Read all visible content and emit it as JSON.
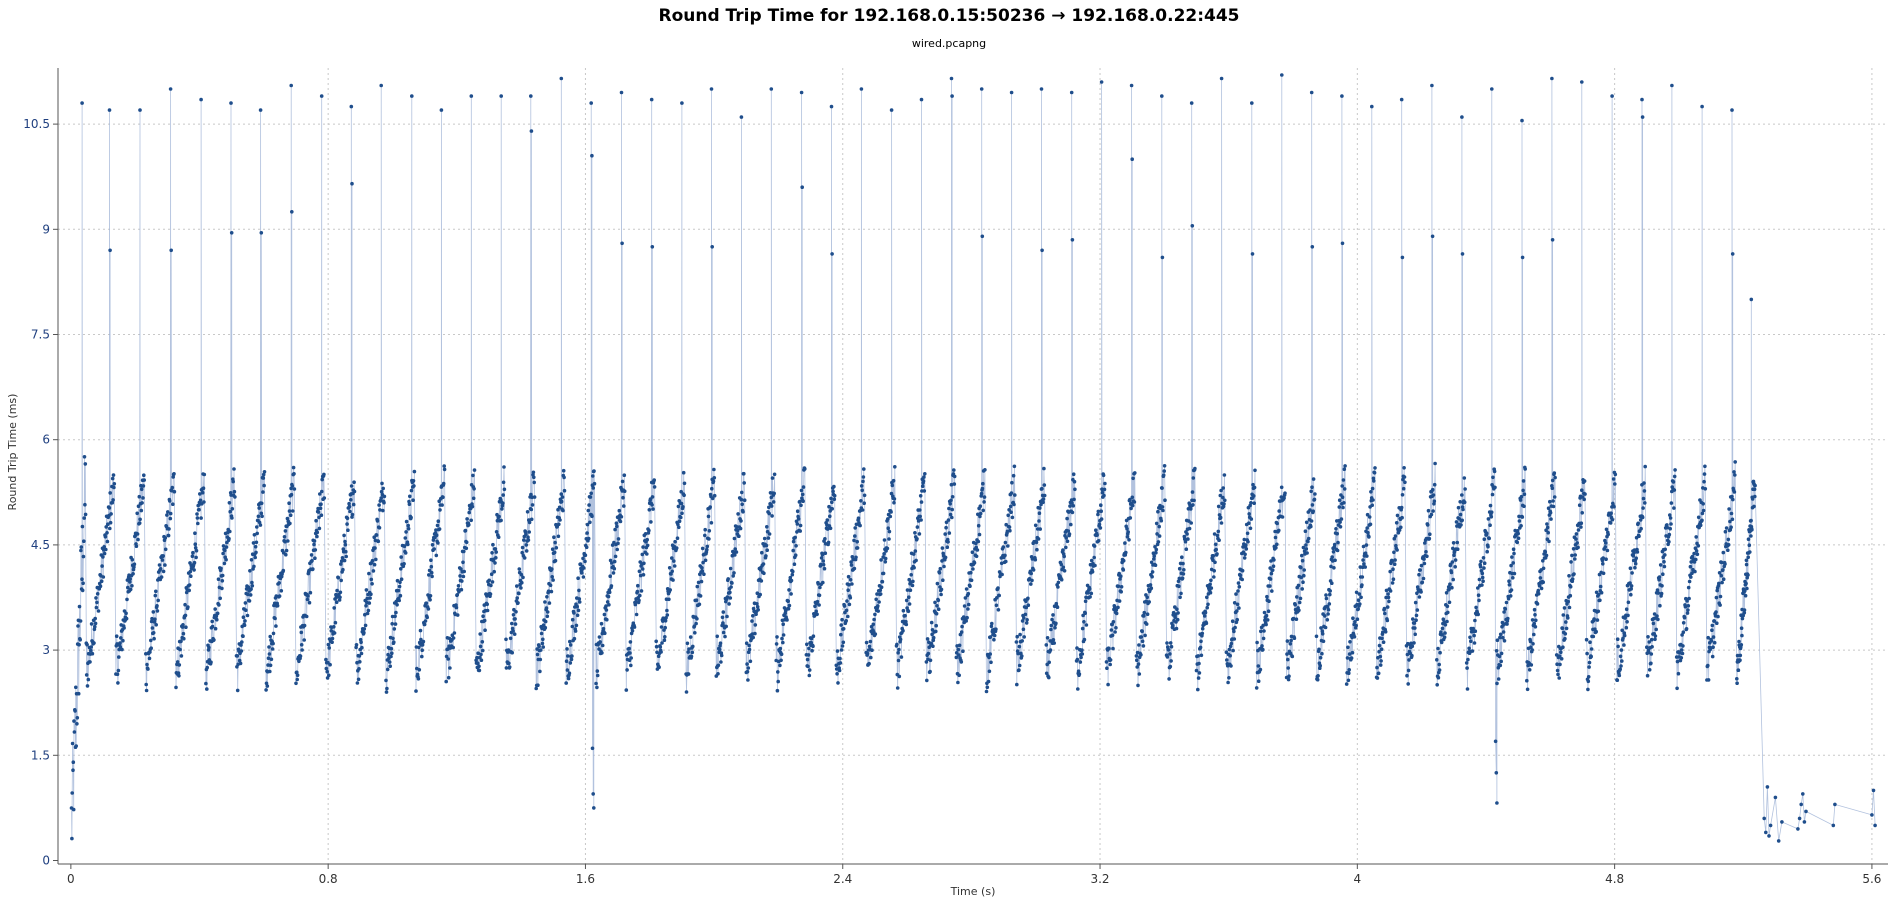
{
  "chart_data": {
    "type": "scatter",
    "title": "Round Trip Time for 192.168.0.15:50236 → 192.168.0.22:445",
    "subtitle": "wired.pcapng",
    "xlabel": "Time (s)",
    "ylabel": "Round Trip Time (ms)",
    "xlim": [
      -0.04,
      5.65
    ],
    "ylim": [
      -0.05,
      11.3
    ],
    "x_ticks": [
      "0",
      "0.8",
      "1.6",
      "2.4",
      "3.2",
      "4",
      "4.8",
      "5.6"
    ],
    "y_ticks": [
      "0",
      "1.5",
      "3",
      "4.5",
      "6",
      "7.5",
      "9",
      "10.5"
    ],
    "grid": true,
    "series": [
      {
        "color": "#1f4e8c",
        "connected": true,
        "pattern": "periodic sawtooth: RTT climbs from about 2.5 ms to about 5.5 ms over each ~0.095 s cycle, with isolated spikes near 10.5-11 ms at cycle boundaries; initial ramp from ~0.5 ms at t=0, dips to ~0.8 ms near t=1.62 s and t=4.43 s, low values (~0.3-1.0 ms) after t=5.25 s",
        "cycle_starts": [
          0.048,
          0.14,
          0.233,
          0.327,
          0.42,
          0.515,
          0.607,
          0.7,
          0.793,
          0.887,
          0.98,
          1.073,
          1.167,
          1.26,
          1.353,
          1.447,
          1.54,
          1.633,
          1.727,
          1.82,
          1.913,
          2.007,
          2.1,
          2.193,
          2.287,
          2.38,
          2.473,
          2.567,
          2.66,
          2.753,
          2.847,
          2.94,
          3.033,
          3.127,
          3.22,
          3.313,
          3.407,
          3.5,
          3.593,
          3.687,
          3.78,
          3.873,
          3.967,
          4.06,
          4.153,
          4.247,
          4.34,
          4.433,
          4.527,
          4.62,
          4.713,
          4.807,
          4.9,
          4.993,
          5.087,
          5.18
        ],
        "spikes": [
          {
            "x": 0.035,
            "y": 10.8
          },
          {
            "x": 0.12,
            "y": 10.7
          },
          {
            "x": 0.122,
            "y": 8.7
          },
          {
            "x": 0.215,
            "y": 10.7
          },
          {
            "x": 0.31,
            "y": 11.0
          },
          {
            "x": 0.312,
            "y": 8.7
          },
          {
            "x": 0.405,
            "y": 10.85
          },
          {
            "x": 0.498,
            "y": 10.8
          },
          {
            "x": 0.5,
            "y": 8.95
          },
          {
            "x": 0.59,
            "y": 10.7
          },
          {
            "x": 0.592,
            "y": 8.95
          },
          {
            "x": 0.685,
            "y": 11.05
          },
          {
            "x": 0.687,
            "y": 9.25
          },
          {
            "x": 0.78,
            "y": 10.9
          },
          {
            "x": 0.872,
            "y": 10.75
          },
          {
            "x": 0.874,
            "y": 9.65
          },
          {
            "x": 0.965,
            "y": 11.05
          },
          {
            "x": 1.06,
            "y": 10.9
          },
          {
            "x": 1.152,
            "y": 10.7
          },
          {
            "x": 1.245,
            "y": 10.9
          },
          {
            "x": 1.338,
            "y": 10.9
          },
          {
            "x": 1.43,
            "y": 10.9
          },
          {
            "x": 1.432,
            "y": 10.4
          },
          {
            "x": 1.525,
            "y": 11.15
          },
          {
            "x": 1.618,
            "y": 10.8
          },
          {
            "x": 1.62,
            "y": 10.05
          },
          {
            "x": 1.712,
            "y": 10.95
          },
          {
            "x": 1.714,
            "y": 8.8
          },
          {
            "x": 1.806,
            "y": 10.85
          },
          {
            "x": 1.808,
            "y": 8.75
          },
          {
            "x": 1.9,
            "y": 10.8
          },
          {
            "x": 1.992,
            "y": 11.0
          },
          {
            "x": 1.994,
            "y": 8.75
          },
          {
            "x": 2.085,
            "y": 10.6
          },
          {
            "x": 2.178,
            "y": 11.0
          },
          {
            "x": 2.272,
            "y": 10.95
          },
          {
            "x": 2.274,
            "y": 9.6
          },
          {
            "x": 2.365,
            "y": 10.75
          },
          {
            "x": 2.367,
            "y": 8.65
          },
          {
            "x": 2.458,
            "y": 11.0
          },
          {
            "x": 2.552,
            "y": 10.7
          },
          {
            "x": 2.645,
            "y": 10.85
          },
          {
            "x": 2.738,
            "y": 11.15
          },
          {
            "x": 2.74,
            "y": 10.9
          },
          {
            "x": 2.832,
            "y": 11.0
          },
          {
            "x": 2.834,
            "y": 8.9
          },
          {
            "x": 2.925,
            "y": 10.95
          },
          {
            "x": 3.018,
            "y": 11.0
          },
          {
            "x": 3.02,
            "y": 8.7
          },
          {
            "x": 3.112,
            "y": 10.95
          },
          {
            "x": 3.114,
            "y": 8.85
          },
          {
            "x": 3.205,
            "y": 11.1
          },
          {
            "x": 3.298,
            "y": 11.05
          },
          {
            "x": 3.3,
            "y": 10.0
          },
          {
            "x": 3.392,
            "y": 10.9
          },
          {
            "x": 3.394,
            "y": 8.6
          },
          {
            "x": 3.485,
            "y": 10.8
          },
          {
            "x": 3.487,
            "y": 9.05
          },
          {
            "x": 3.578,
            "y": 11.15
          },
          {
            "x": 3.672,
            "y": 10.8
          },
          {
            "x": 3.674,
            "y": 8.65
          },
          {
            "x": 3.765,
            "y": 11.2
          },
          {
            "x": 3.858,
            "y": 10.95
          },
          {
            "x": 3.86,
            "y": 8.75
          },
          {
            "x": 3.952,
            "y": 10.9
          },
          {
            "x": 3.954,
            "y": 8.8
          },
          {
            "x": 4.045,
            "y": 10.75
          },
          {
            "x": 4.138,
            "y": 10.85
          },
          {
            "x": 4.14,
            "y": 8.6
          },
          {
            "x": 4.232,
            "y": 11.05
          },
          {
            "x": 4.234,
            "y": 8.9
          },
          {
            "x": 4.325,
            "y": 10.6
          },
          {
            "x": 4.327,
            "y": 8.65
          },
          {
            "x": 4.418,
            "y": 11.0
          },
          {
            "x": 4.512,
            "y": 10.55
          },
          {
            "x": 4.514,
            "y": 8.6
          },
          {
            "x": 4.605,
            "y": 11.15
          },
          {
            "x": 4.607,
            "y": 8.85
          },
          {
            "x": 4.698,
            "y": 11.1
          },
          {
            "x": 4.792,
            "y": 10.9
          },
          {
            "x": 4.885,
            "y": 10.85
          },
          {
            "x": 4.887,
            "y": 10.6
          },
          {
            "x": 4.978,
            "y": 11.05
          },
          {
            "x": 5.072,
            "y": 10.75
          },
          {
            "x": 5.165,
            "y": 10.7
          },
          {
            "x": 5.167,
            "y": 8.65
          },
          {
            "x": 5.225,
            "y": 8.0
          }
        ]
      }
    ]
  }
}
